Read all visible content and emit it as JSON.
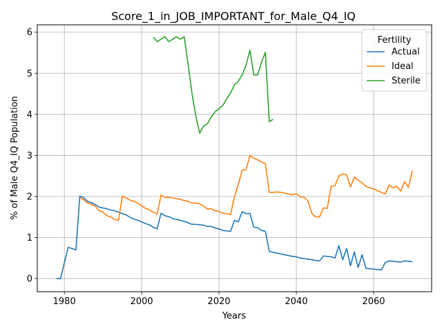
{
  "chart_data": {
    "type": "line",
    "title": "Score_1_in_JOB_IMPORTANT_for_Male_Q4_IQ",
    "xlabel": "Years",
    "ylabel": "% of Male Q4_IQ Population",
    "xlim": [
      1973,
      2075
    ],
    "ylim": [
      -0.32,
      6.18
    ],
    "xticks": [
      1980,
      2000,
      2020,
      2040,
      2060
    ],
    "yticks": [
      0,
      1,
      2,
      3,
      4,
      5,
      6
    ],
    "grid": true,
    "legend": {
      "title": "Fertility",
      "placement": "top-right"
    },
    "series": [
      {
        "name": "Actual",
        "color": "#1f77b4",
        "points": [
          [
            1978,
            0.0
          ],
          [
            1979,
            0.0
          ],
          [
            1981,
            0.76
          ],
          [
            1983,
            0.7
          ],
          [
            1984,
            2.01
          ],
          [
            1985,
            1.97
          ],
          [
            1986,
            1.88
          ],
          [
            1987,
            1.85
          ],
          [
            1988,
            1.8
          ],
          [
            1989,
            1.74
          ],
          [
            1990,
            1.72
          ],
          [
            1991,
            1.7
          ],
          [
            1992,
            1.67
          ],
          [
            1993,
            1.65
          ],
          [
            1994,
            1.62
          ],
          [
            1995,
            1.58
          ],
          [
            1996,
            1.55
          ],
          [
            1997,
            1.49
          ],
          [
            1998,
            1.45
          ],
          [
            1999,
            1.42
          ],
          [
            2000,
            1.38
          ],
          [
            2001,
            1.34
          ],
          [
            2002,
            1.31
          ],
          [
            2003,
            1.25
          ],
          [
            2004,
            1.21
          ],
          [
            2005,
            1.59
          ],
          [
            2006,
            1.53
          ],
          [
            2007,
            1.51
          ],
          [
            2008,
            1.46
          ],
          [
            2009,
            1.44
          ],
          [
            2010,
            1.42
          ],
          [
            2011,
            1.39
          ],
          [
            2012,
            1.36
          ],
          [
            2013,
            1.32
          ],
          [
            2014,
            1.32
          ],
          [
            2015,
            1.31
          ],
          [
            2016,
            1.3
          ],
          [
            2017,
            1.27
          ],
          [
            2018,
            1.27
          ],
          [
            2019,
            1.23
          ],
          [
            2020,
            1.21
          ],
          [
            2021,
            1.17
          ],
          [
            2022,
            1.16
          ],
          [
            2023,
            1.15
          ],
          [
            2024,
            1.42
          ],
          [
            2025,
            1.38
          ],
          [
            2026,
            1.63
          ],
          [
            2027,
            1.58
          ],
          [
            2028,
            1.59
          ],
          [
            2029,
            1.25
          ],
          [
            2030,
            1.24
          ],
          [
            2031,
            1.17
          ],
          [
            2032,
            1.15
          ],
          [
            2033,
            0.66
          ],
          [
            2034,
            0.64
          ],
          [
            2035,
            0.62
          ],
          [
            2036,
            0.6
          ],
          [
            2037,
            0.58
          ],
          [
            2038,
            0.56
          ],
          [
            2039,
            0.54
          ],
          [
            2040,
            0.53
          ],
          [
            2041,
            0.5
          ],
          [
            2042,
            0.49
          ],
          [
            2043,
            0.47
          ],
          [
            2044,
            0.46
          ],
          [
            2045,
            0.44
          ],
          [
            2046,
            0.43
          ],
          [
            2047,
            0.55
          ],
          [
            2048,
            0.54
          ],
          [
            2049,
            0.53
          ],
          [
            2050,
            0.5
          ],
          [
            2051,
            0.8
          ],
          [
            2052,
            0.46
          ],
          [
            2053,
            0.73
          ],
          [
            2054,
            0.31
          ],
          [
            2055,
            0.65
          ],
          [
            2056,
            0.27
          ],
          [
            2057,
            0.58
          ],
          [
            2058,
            0.25
          ],
          [
            2059,
            0.24
          ],
          [
            2060,
            0.23
          ],
          [
            2061,
            0.22
          ],
          [
            2062,
            0.21
          ],
          [
            2063,
            0.39
          ],
          [
            2064,
            0.43
          ],
          [
            2065,
            0.42
          ],
          [
            2066,
            0.41
          ],
          [
            2067,
            0.4
          ],
          [
            2068,
            0.43
          ],
          [
            2069,
            0.42
          ],
          [
            2070,
            0.41
          ]
        ]
      },
      {
        "name": "Ideal",
        "color": "#ff7f0e",
        "points": [
          [
            1984,
            1.97
          ],
          [
            1985,
            1.92
          ],
          [
            1986,
            1.84
          ],
          [
            1987,
            1.81
          ],
          [
            1988,
            1.76
          ],
          [
            1989,
            1.65
          ],
          [
            1990,
            1.62
          ],
          [
            1991,
            1.53
          ],
          [
            1992,
            1.5
          ],
          [
            1993,
            1.44
          ],
          [
            1994,
            1.42
          ],
          [
            1995,
            2.01
          ],
          [
            1996,
            1.96
          ],
          [
            1997,
            1.91
          ],
          [
            1998,
            1.88
          ],
          [
            1999,
            1.84
          ],
          [
            2000,
            1.77
          ],
          [
            2001,
            1.71
          ],
          [
            2002,
            1.67
          ],
          [
            2003,
            1.62
          ],
          [
            2004,
            1.57
          ],
          [
            2005,
            2.03
          ],
          [
            2006,
            1.98
          ],
          [
            2007,
            1.98
          ],
          [
            2008,
            1.96
          ],
          [
            2009,
            1.95
          ],
          [
            2010,
            1.93
          ],
          [
            2011,
            1.9
          ],
          [
            2012,
            1.88
          ],
          [
            2013,
            1.84
          ],
          [
            2014,
            1.84
          ],
          [
            2015,
            1.82
          ],
          [
            2016,
            1.77
          ],
          [
            2017,
            1.69
          ],
          [
            2018,
            1.7
          ],
          [
            2019,
            1.65
          ],
          [
            2020,
            1.63
          ],
          [
            2021,
            1.59
          ],
          [
            2022,
            1.58
          ],
          [
            2023,
            1.56
          ],
          [
            2024,
            2.0
          ],
          [
            2025,
            2.3
          ],
          [
            2026,
            2.64
          ],
          [
            2027,
            2.65
          ],
          [
            2028,
            3.0
          ],
          [
            2029,
            2.93
          ],
          [
            2030,
            2.89
          ],
          [
            2031,
            2.84
          ],
          [
            2032,
            2.8
          ],
          [
            2033,
            2.1
          ],
          [
            2034,
            2.1
          ],
          [
            2035,
            2.11
          ],
          [
            2036,
            2.1
          ],
          [
            2037,
            2.08
          ],
          [
            2038,
            2.06
          ],
          [
            2039,
            2.04
          ],
          [
            2040,
            2.07
          ],
          [
            2041,
            1.99
          ],
          [
            2042,
            1.98
          ],
          [
            2043,
            1.89
          ],
          [
            2044,
            1.59
          ],
          [
            2045,
            1.5
          ],
          [
            2046,
            1.5
          ],
          [
            2047,
            1.72
          ],
          [
            2048,
            1.71
          ],
          [
            2049,
            2.25
          ],
          [
            2050,
            2.26
          ],
          [
            2051,
            2.5
          ],
          [
            2052,
            2.55
          ],
          [
            2053,
            2.53
          ],
          [
            2054,
            2.23
          ],
          [
            2055,
            2.47
          ],
          [
            2056,
            2.4
          ],
          [
            2057,
            2.33
          ],
          [
            2058,
            2.25
          ],
          [
            2059,
            2.21
          ],
          [
            2060,
            2.18
          ],
          [
            2061,
            2.14
          ],
          [
            2062,
            2.1
          ],
          [
            2063,
            2.06
          ],
          [
            2064,
            2.28
          ],
          [
            2065,
            2.21
          ],
          [
            2066,
            2.25
          ],
          [
            2067,
            2.13
          ],
          [
            2068,
            2.36
          ],
          [
            2069,
            2.22
          ],
          [
            2070,
            2.62
          ]
        ]
      },
      {
        "name": "Sterile",
        "color": "#2ca02c",
        "points": [
          [
            2003,
            5.88
          ],
          [
            2004,
            5.77
          ],
          [
            2005,
            5.83
          ],
          [
            2006,
            5.89
          ],
          [
            2007,
            5.77
          ],
          [
            2008,
            5.83
          ],
          [
            2009,
            5.89
          ],
          [
            2010,
            5.83
          ],
          [
            2011,
            5.89
          ],
          [
            2012,
            5.22
          ],
          [
            2013,
            4.52
          ],
          [
            2014,
            3.96
          ],
          [
            2015,
            3.54
          ],
          [
            2016,
            3.71
          ],
          [
            2017,
            3.77
          ],
          [
            2018,
            3.94
          ],
          [
            2019,
            4.06
          ],
          [
            2020,
            4.14
          ],
          [
            2021,
            4.22
          ],
          [
            2022,
            4.38
          ],
          [
            2023,
            4.52
          ],
          [
            2024,
            4.72
          ],
          [
            2025,
            4.81
          ],
          [
            2026,
            4.96
          ],
          [
            2027,
            5.2
          ],
          [
            2028,
            5.56
          ],
          [
            2029,
            4.96
          ],
          [
            2030,
            4.96
          ],
          [
            2031,
            5.27
          ],
          [
            2032,
            5.51
          ],
          [
            2033,
            3.82
          ],
          [
            2034,
            3.88
          ]
        ]
      }
    ]
  }
}
